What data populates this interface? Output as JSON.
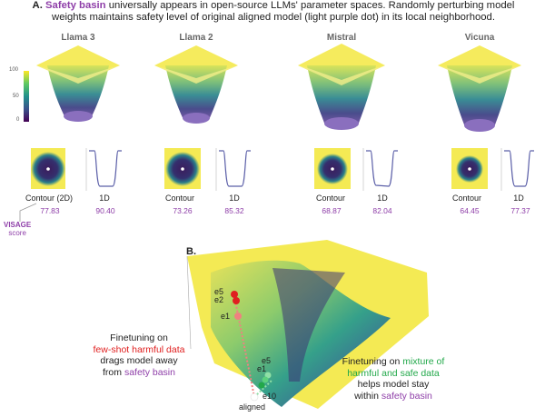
{
  "header": {
    "letter": "A.",
    "highlight": "Safety basin",
    "line1_rest": " universally appears in open-source LLMs' parameter spaces. Randomly perturbing model",
    "line2": "weights maintains safety level of original aligned model (light purple dot) in its local neighborhood."
  },
  "colorbar_ticks": [
    "100",
    "50",
    "0"
  ],
  "models": [
    {
      "name": "Llama 3",
      "contour_label": "Contour (2D)",
      "oned_label": "1D",
      "contour_score": "77.83",
      "oned_score": "90.40"
    },
    {
      "name": "Llama 2",
      "contour_label": "Contour",
      "oned_label": "1D",
      "contour_score": "73.26",
      "oned_score": "85.32"
    },
    {
      "name": "Mistral",
      "contour_label": "Contour",
      "oned_label": "1D",
      "contour_score": "68.87",
      "oned_score": "82.04"
    },
    {
      "name": "Vicuna",
      "contour_label": "Contour",
      "oned_label": "1D",
      "contour_score": "64.45",
      "oned_score": "77.37"
    }
  ],
  "visage": {
    "title": "VISAGE",
    "sub": "score"
  },
  "panel_b": {
    "letter": "B.",
    "left_text": {
      "l1": "Finetuning on",
      "l2": "few-shot harmful data",
      "l3": "drags model away",
      "l4_a": "from ",
      "l4_b": "safety basin"
    },
    "right_text": {
      "l1_a": "Finetuning on ",
      "l1_b": "mixture of",
      "l2": "harmful and safe data",
      "l3": "helps model stay",
      "l4_a": "within ",
      "l4_b": "safety basin"
    },
    "red_labels": [
      "e5",
      "e2",
      "e1"
    ],
    "green_labels": [
      "e5",
      "e1",
      "e10"
    ],
    "aligned_label": "aligned"
  },
  "colors": {
    "purple": "#8e3ea8",
    "red": "#e02020",
    "green": "#22a84a",
    "yellow": "#f4ea54"
  }
}
